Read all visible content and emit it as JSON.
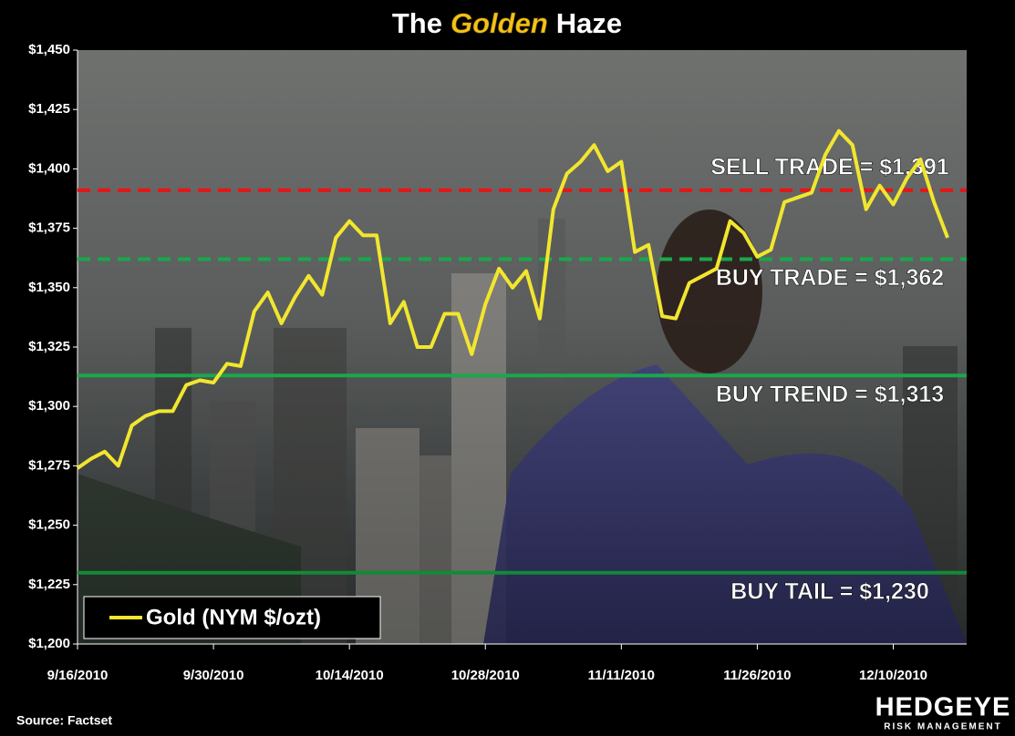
{
  "chart_data": {
    "type": "line",
    "title": [
      "The",
      "Golden",
      "Haze"
    ],
    "categories": [
      "9/16/2010",
      null,
      null,
      null,
      null,
      null,
      null,
      null,
      null,
      null,
      "9/30/2010",
      null,
      null,
      null,
      null,
      null,
      null,
      null,
      null,
      null,
      "10/14/2010",
      null,
      null,
      null,
      null,
      null,
      null,
      null,
      null,
      null,
      "10/28/2010",
      null,
      null,
      null,
      null,
      null,
      null,
      null,
      null,
      null,
      "11/11/2010",
      null,
      null,
      null,
      null,
      null,
      null,
      null,
      null,
      null,
      "11/26/2010",
      null,
      null,
      null,
      null,
      null,
      null,
      null,
      null,
      null,
      "12/10/2010",
      null,
      null,
      null,
      null
    ],
    "series": [
      {
        "name": "Gold (NYM $/ozt)",
        "color": "#f2e62e",
        "values": [
          1274,
          1278,
          1281,
          1275,
          1292,
          1296,
          1298,
          1298,
          1309,
          1311,
          1310,
          1318,
          1317,
          1340,
          1348,
          1335,
          1346,
          1355,
          1347,
          1371,
          1378,
          1372,
          1372,
          1335,
          1344,
          1325,
          1325,
          1339,
          1339,
          1322,
          1343,
          1358,
          1350,
          1357,
          1337,
          1383,
          1398,
          1403,
          1410,
          1399,
          1403,
          1365,
          1368,
          1338,
          1337,
          1352,
          1355,
          1358,
          1378,
          1373,
          1363,
          1366,
          1386,
          1388,
          1390,
          1406,
          1416,
          1410,
          1383,
          1393,
          1385,
          1396,
          1404,
          1386,
          1371
        ]
      }
    ],
    "ylim": [
      1200,
      1450
    ],
    "yticks": [
      {
        "value": 1200,
        "label": "$1,200"
      },
      {
        "value": 1225,
        "label": "$1,225"
      },
      {
        "value": 1250,
        "label": "$1,250"
      },
      {
        "value": 1275,
        "label": "$1,275"
      },
      {
        "value": 1300,
        "label": "$1,300"
      },
      {
        "value": 1325,
        "label": "$1,325"
      },
      {
        "value": 1350,
        "label": "$1,350"
      },
      {
        "value": 1375,
        "label": "$1,375"
      },
      {
        "value": 1400,
        "label": "$1,400"
      },
      {
        "value": 1425,
        "label": "$1,425"
      },
      {
        "value": 1450,
        "label": "$1,450"
      }
    ],
    "reference_lines": [
      {
        "label": "SELL TRADE = $1,391",
        "value": 1391,
        "color": "#e81515",
        "dashed": true
      },
      {
        "label": "BUY TRADE = $1,362",
        "value": 1362,
        "color": "#19a84a",
        "dashed": true
      },
      {
        "label": "BUY TREND = $1,313",
        "value": 1313,
        "color": "#19a84a",
        "dashed": false
      },
      {
        "label": "BUY TAIL = $1,230",
        "value": 1230,
        "color": "#128a38",
        "dashed": false
      }
    ],
    "legend": "bottom-left",
    "source": "Source: Factset",
    "logo": {
      "name": "HEDGEYE",
      "tagline": "RISK MANAGEMENT"
    }
  }
}
